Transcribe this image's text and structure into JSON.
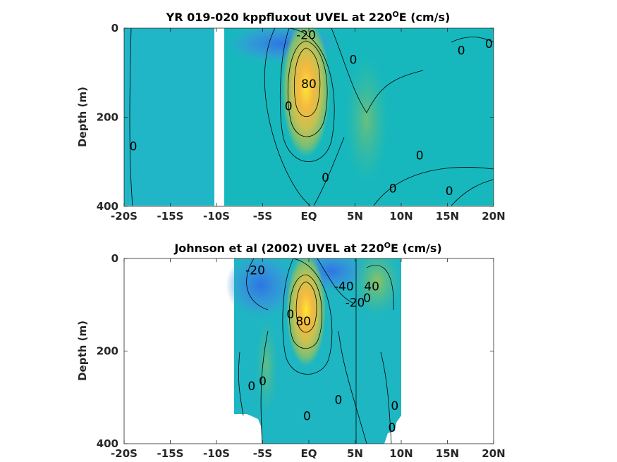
{
  "chart_data": [
    {
      "type": "heatmap",
      "title": "YR 019-020 kppfluxout UVEL at 220",
      "title_sup": "O",
      "title_tail": "E (cm/s)",
      "ylabel": "Depth (m)",
      "xlabel": "",
      "xlim": [
        -20,
        20
      ],
      "ylim": [
        0,
        400
      ],
      "y_reversed": true,
      "x_ticks": [
        -20,
        -15,
        -10,
        -5,
        0,
        5,
        10,
        15,
        20
      ],
      "x_tick_labels": [
        "-20S",
        "-15S",
        "-10S",
        "-5S",
        "EQ",
        "5N",
        "10N",
        "15N",
        "20N"
      ],
      "y_ticks": [
        0,
        200,
        400
      ],
      "y_tick_labels": [
        "0",
        "200",
        "400"
      ],
      "data_extent": [
        {
          "x": [
            -20,
            -10.2
          ],
          "y": [
            0,
            385
          ]
        },
        {
          "x": [
            -9.3,
            20
          ],
          "y": [
            0,
            385
          ]
        }
      ],
      "contour_interval": 20,
      "contour_labels": [
        {
          "text": "-20",
          "x": -0.3,
          "y": 15
        },
        {
          "text": "0",
          "x": 16.5,
          "y": 50
        },
        {
          "text": "0",
          "x": 19.5,
          "y": 35
        },
        {
          "text": "0",
          "x": 4.8,
          "y": 70
        },
        {
          "text": "80",
          "x": 0.0,
          "y": 125
        },
        {
          "text": "0",
          "x": -2.2,
          "y": 175
        },
        {
          "text": "0",
          "x": -19.0,
          "y": 265
        },
        {
          "text": "0",
          "x": 12.0,
          "y": 285
        },
        {
          "text": "0",
          "x": 1.8,
          "y": 335
        },
        {
          "text": "0",
          "x": 9.1,
          "y": 360
        },
        {
          "text": "0",
          "x": 15.2,
          "y": 365
        }
      ]
    },
    {
      "type": "heatmap",
      "title": "Johnson et al (2002) UVEL at 220",
      "title_sup": "O",
      "title_tail": "E (cm/s)",
      "ylabel": "Depth (m)",
      "xlabel": "",
      "xlim": [
        -20,
        20
      ],
      "ylim": [
        0,
        400
      ],
      "y_reversed": true,
      "x_ticks": [
        -20,
        -15,
        -10,
        -5,
        0,
        5,
        10,
        15,
        20
      ],
      "x_tick_labels": [
        "-20S",
        "-15S",
        "-10S",
        "-5S",
        "EQ",
        "5N",
        "10N",
        "15N",
        "20N"
      ],
      "y_ticks": [
        0,
        200,
        400
      ],
      "y_tick_labels": [
        "0",
        "200",
        "400"
      ],
      "data_extent": [
        {
          "x": [
            -8.0,
            10.0
          ],
          "y": [
            0,
            400
          ]
        }
      ],
      "contour_interval": 20,
      "contour_labels": [
        {
          "text": "-20",
          "x": -5.8,
          "y": 25
        },
        {
          "text": "-40",
          "x": 3.8,
          "y": 60
        },
        {
          "text": "-20",
          "x": 5.0,
          "y": 95
        },
        {
          "text": "40",
          "x": 6.8,
          "y": 60
        },
        {
          "text": "0",
          "x": 6.3,
          "y": 85
        },
        {
          "text": "0",
          "x": -2.0,
          "y": 120
        },
        {
          "text": "80",
          "x": -0.6,
          "y": 135
        },
        {
          "text": "0",
          "x": -6.2,
          "y": 275
        },
        {
          "text": "0",
          "x": -5.0,
          "y": 265
        },
        {
          "text": "0",
          "x": 3.2,
          "y": 305
        },
        {
          "text": "0",
          "x": 9.3,
          "y": 318
        },
        {
          "text": "0",
          "x": -0.2,
          "y": 340
        },
        {
          "text": "0",
          "x": 9.0,
          "y": 365
        }
      ]
    }
  ]
}
